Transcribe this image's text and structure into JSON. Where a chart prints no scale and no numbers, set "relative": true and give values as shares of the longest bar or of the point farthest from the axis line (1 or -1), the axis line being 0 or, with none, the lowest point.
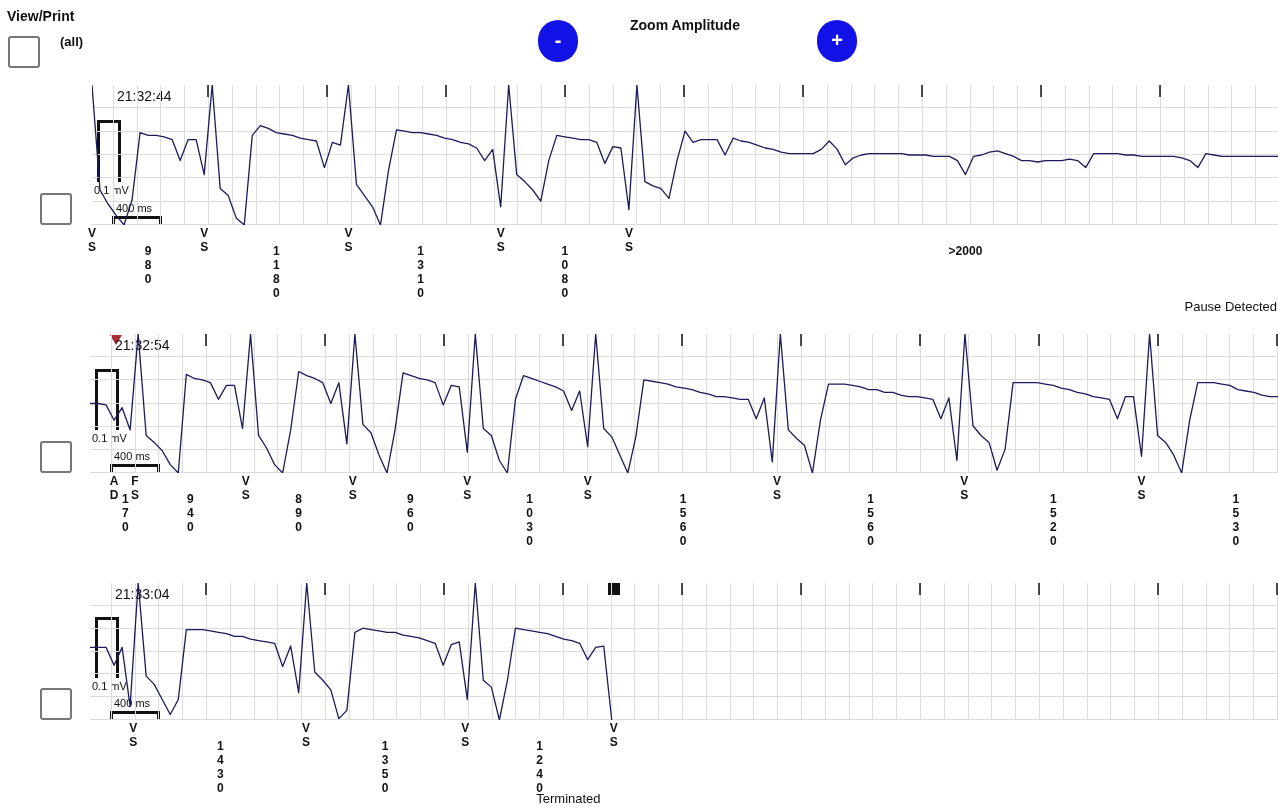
{
  "chart_data": [
    {
      "type": "other",
      "annotations": [
        "View/Print",
        "(all)",
        "Zoom Amplitude",
        "-",
        "+"
      ]
    },
    {
      "type": "line",
      "relative": true,
      "grid": true,
      "marker": "none",
      "tick_labels": false,
      "color": "#1c1c5a",
      "categories": [
        null,
        null,
        null,
        null,
        null,
        null,
        null,
        null,
        null,
        null,
        null,
        null,
        null,
        null,
        null,
        null,
        null,
        null,
        null,
        null,
        null,
        null,
        null,
        null,
        null,
        null,
        null,
        null,
        null,
        null,
        null,
        null,
        null,
        null,
        null,
        null,
        null,
        null,
        null,
        null,
        null,
        null,
        null,
        null,
        null,
        null,
        null,
        null,
        null,
        null,
        null,
        null,
        null,
        null,
        null,
        null,
        null,
        null,
        null,
        null,
        null,
        null,
        null,
        null,
        null,
        null,
        null,
        null,
        null,
        null,
        null,
        null,
        null,
        null,
        null,
        null,
        null,
        null,
        null,
        null,
        null,
        null,
        null,
        null,
        null,
        null,
        null,
        null,
        null,
        null,
        null,
        null,
        null,
        null,
        null,
        null,
        null,
        null,
        null,
        null,
        null,
        null,
        null,
        null,
        null,
        null,
        null,
        null,
        null,
        null,
        null,
        null,
        null,
        null,
        null,
        null,
        null,
        null,
        null,
        null,
        null,
        null,
        null,
        null,
        null,
        null,
        null,
        null,
        null,
        null,
        null,
        null,
        null,
        null,
        null,
        null,
        null,
        null,
        null,
        null,
        null,
        null,
        null,
        null,
        null,
        null,
        null,
        null,
        null
      ],
      "values": [
        1.0,
        0.25,
        0.15,
        0.07,
        0,
        0.18,
        0.66,
        0.64,
        0.64,
        0.63,
        0.61,
        0.46,
        0.61,
        0.61,
        0.36,
        1.0,
        0.26,
        0.21,
        0.05,
        0,
        0.64,
        0.71,
        0.69,
        0.66,
        0.65,
        0.64,
        0.62,
        0.61,
        0.6,
        0.41,
        0.59,
        0.57,
        1.0,
        0.29,
        0.21,
        0.13,
        0,
        0.39,
        0.68,
        0.67,
        0.66,
        0.66,
        0.65,
        0.64,
        0.62,
        0.61,
        0.59,
        0.58,
        0.55,
        0.46,
        0.54,
        0.13,
        1.0,
        0.36,
        0.31,
        0.25,
        0.17,
        0.46,
        0.64,
        0.63,
        0.62,
        0.61,
        0.61,
        0.59,
        0.44,
        0.56,
        0.55,
        0.11,
        1.0,
        0.31,
        0.28,
        0.26,
        0.19,
        0.46,
        0.67,
        0.59,
        0.61,
        0.61,
        0.61,
        0.5,
        0.62,
        0.6,
        0.59,
        0.57,
        0.55,
        0.54,
        0.52,
        0.51,
        0.51,
        0.51,
        0.51,
        0.54,
        0.6,
        0.54,
        0.43,
        0.48,
        0.5,
        0.51,
        0.51,
        0.51,
        0.51,
        0.51,
        0.5,
        0.5,
        0.5,
        0.49,
        0.49,
        0.49,
        0.46,
        0.36,
        0.49,
        0.5,
        0.52,
        0.53,
        0.51,
        0.49,
        0.46,
        0.46,
        0.45,
        0.46,
        0.46,
        0.46,
        0.47,
        0.46,
        0.41,
        0.51,
        0.51,
        0.51,
        0.51,
        0.5,
        0.5,
        0.49,
        0.49,
        0.49,
        0.49,
        0.49,
        0.48,
        0.46,
        0.41,
        0.51,
        0.5,
        0.49,
        0.49,
        0.49,
        0.49,
        0.49,
        0.49,
        0.49,
        0.49
      ],
      "annotations": [
        "21:32:44",
        "0.1 mV",
        "400 ms",
        "VS",
        "980",
        "VS",
        "1180",
        "VS",
        "1310",
        "VS",
        "1080",
        "VS",
        ">2000",
        "Pause Detected"
      ]
    },
    {
      "type": "line",
      "relative": true,
      "grid": true,
      "marker": "none",
      "tick_labels": false,
      "color": "#1c1c5a",
      "categories": [
        null,
        null,
        null,
        null,
        null,
        null,
        null,
        null,
        null,
        null,
        null,
        null,
        null,
        null,
        null,
        null,
        null,
        null,
        null,
        null,
        null,
        null,
        null,
        null,
        null,
        null,
        null,
        null,
        null,
        null,
        null,
        null,
        null,
        null,
        null,
        null,
        null,
        null,
        null,
        null,
        null,
        null,
        null,
        null,
        null,
        null,
        null,
        null,
        null,
        null,
        null,
        null,
        null,
        null,
        null,
        null,
        null,
        null,
        null,
        null,
        null,
        null,
        null,
        null,
        null,
        null,
        null,
        null,
        null,
        null,
        null,
        null,
        null,
        null,
        null,
        null,
        null,
        null,
        null,
        null,
        null,
        null,
        null,
        null,
        null,
        null,
        null,
        null,
        null,
        null,
        null,
        null,
        null,
        null,
        null,
        null,
        null,
        null,
        null,
        null,
        null,
        null,
        null,
        null,
        null,
        null,
        null,
        null,
        null,
        null,
        null,
        null,
        null,
        null,
        null,
        null,
        null,
        null,
        null,
        null,
        null,
        null,
        null,
        null,
        null,
        null,
        null,
        null,
        null,
        null,
        null,
        null,
        null,
        null,
        null,
        null,
        null,
        null,
        null,
        null,
        null,
        null,
        null,
        null,
        null,
        null,
        null,
        null,
        null
      ],
      "values": [
        0.5,
        0.5,
        0.49,
        0.38,
        0.47,
        0.31,
        1.0,
        0.27,
        0.22,
        0.16,
        0.06,
        0,
        0.71,
        0.68,
        0.67,
        0.65,
        0.53,
        0.63,
        0.63,
        0.32,
        1.0,
        0.27,
        0.18,
        0.06,
        0,
        0.31,
        0.73,
        0.7,
        0.68,
        0.65,
        0.5,
        0.65,
        0.21,
        1.0,
        0.35,
        0.29,
        0.13,
        0,
        0.31,
        0.72,
        0.7,
        0.68,
        0.67,
        0.65,
        0.49,
        0.63,
        0.62,
        0.15,
        1.0,
        0.32,
        0.27,
        0.09,
        0,
        0.53,
        0.7,
        0.68,
        0.66,
        0.64,
        0.62,
        0.59,
        0.45,
        0.59,
        0.19,
        1.0,
        0.32,
        0.26,
        0.13,
        0,
        0.26,
        0.67,
        0.66,
        0.65,
        0.64,
        0.62,
        0.61,
        0.6,
        0.58,
        0.57,
        0.55,
        0.55,
        0.54,
        0.53,
        0.53,
        0.39,
        0.54,
        0.08,
        1.0,
        0.31,
        0.25,
        0.2,
        0,
        0.38,
        0.64,
        0.64,
        0.64,
        0.63,
        0.62,
        0.6,
        0.6,
        0.58,
        0.58,
        0.56,
        0.55,
        0.55,
        0.54,
        0.53,
        0.39,
        0.54,
        0.09,
        1.0,
        0.34,
        0.27,
        0.22,
        0.02,
        0.17,
        0.65,
        0.65,
        0.65,
        0.65,
        0.64,
        0.63,
        0.61,
        0.6,
        0.58,
        0.57,
        0.55,
        0.54,
        0.53,
        0.39,
        0.55,
        0.55,
        0.12,
        1.0,
        0.27,
        0.22,
        0.13,
        0,
        0.38,
        0.65,
        0.65,
        0.65,
        0.64,
        0.63,
        0.6,
        0.59,
        0.58,
        0.56,
        0.55,
        0.55
      ],
      "annotations": [
        "21:32:54",
        "0.1 mV",
        "400 ms",
        "AD",
        "170",
        "FS",
        "940",
        "VS",
        "890",
        "VS",
        "960",
        "VS",
        "1030",
        "VS",
        "1560",
        "VS",
        "1560",
        "VS",
        "1520",
        "VS",
        "1530"
      ]
    },
    {
      "type": "line",
      "relative": true,
      "grid": true,
      "marker": "none",
      "tick_labels": false,
      "color": "#1c1c5a",
      "categories": [
        null,
        null,
        null,
        null,
        null,
        null,
        null,
        null,
        null,
        null,
        null,
        null,
        null,
        null,
        null,
        null,
        null,
        null,
        null,
        null,
        null,
        null,
        null,
        null,
        null,
        null,
        null,
        null,
        null,
        null,
        null,
        null,
        null,
        null,
        null,
        null,
        null,
        null,
        null,
        null,
        null,
        null,
        null,
        null,
        null,
        null,
        null,
        null,
        null,
        null,
        null,
        null,
        null,
        null,
        null,
        null,
        null,
        null,
        null,
        null,
        null,
        null,
        null,
        null,
        null,
        null,
        null,
        null,
        null,
        null,
        null,
        null,
        null,
        null,
        null,
        null,
        null,
        null,
        null,
        null,
        null,
        null,
        null,
        null,
        null,
        null,
        null,
        null,
        null,
        null,
        null,
        null,
        null,
        null,
        null,
        null,
        null,
        null,
        null,
        null,
        null,
        null,
        null,
        null,
        null,
        null,
        null,
        null,
        null,
        null,
        null,
        null,
        null,
        null,
        null,
        null,
        null,
        null,
        null,
        null,
        null,
        null,
        null,
        null,
        null,
        null,
        null,
        null,
        null,
        null,
        null,
        null,
        null,
        null,
        null,
        null,
        null,
        null,
        null,
        null,
        null,
        null,
        null,
        null,
        null,
        null,
        null,
        null,
        null
      ],
      "values": [
        0.53,
        0.53,
        0.53,
        0.4,
        0.53,
        0.1,
        1.0,
        0.32,
        0.26,
        0.15,
        0.04,
        0.15,
        0.66,
        0.66,
        0.66,
        0.65,
        0.64,
        0.63,
        0.61,
        0.61,
        0.59,
        0.58,
        0.57,
        0.56,
        0.39,
        0.54,
        0.2,
        1.0,
        0.35,
        0.29,
        0.22,
        0.01,
        0.07,
        0.64,
        0.67,
        0.66,
        0.65,
        0.64,
        0.64,
        0.62,
        0.61,
        0.6,
        0.58,
        0.56,
        0.4,
        0.55,
        0.57,
        0.15,
        1.0,
        0.29,
        0.24,
        0,
        0.29,
        0.67,
        0.66,
        0.65,
        0.64,
        0.63,
        0.61,
        0.59,
        0.58,
        0.56,
        0.44,
        0.53,
        0.54,
        0,
        null,
        null,
        null,
        null,
        null,
        null,
        null,
        null,
        null,
        null,
        null,
        null,
        null,
        null,
        null,
        null,
        null,
        null,
        null,
        null,
        null,
        null,
        null,
        null,
        null,
        null,
        null,
        null,
        null,
        null,
        null,
        null,
        null,
        null,
        null,
        null,
        null,
        null,
        null,
        null,
        null,
        null,
        null,
        null,
        null,
        null,
        null,
        null,
        null,
        null,
        null,
        null,
        null,
        null,
        null,
        null,
        null,
        null,
        null,
        null,
        null,
        null,
        null,
        null,
        null,
        null,
        null,
        null,
        null,
        null,
        null,
        null,
        null,
        null,
        null,
        null,
        null,
        null,
        null,
        null,
        null,
        null,
        null
      ],
      "annotations": [
        "21:33:04",
        "0.1 mV",
        "400 ms",
        "VS",
        "1430",
        "VS",
        "1350",
        "VS",
        "1240",
        "VS",
        "Terminated"
      ]
    }
  ]
}
